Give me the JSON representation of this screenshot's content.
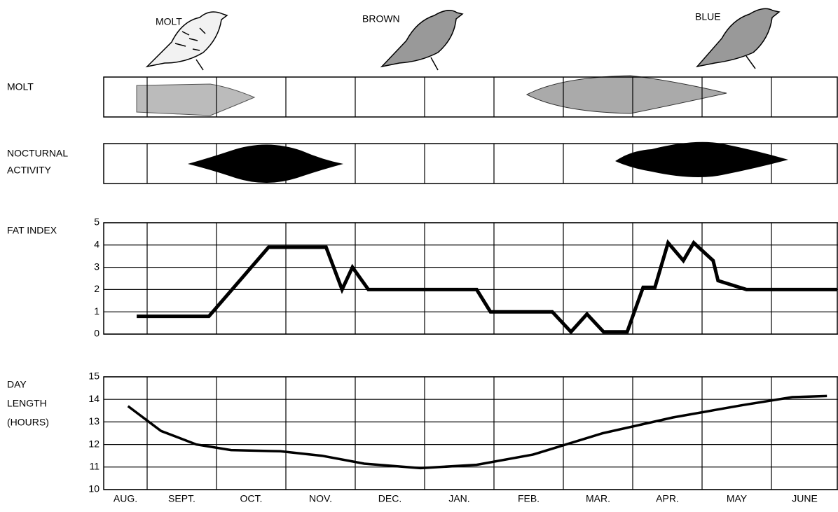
{
  "header": {
    "birds": [
      "MOLT",
      "BROWN",
      "BLUE"
    ]
  },
  "bands": [
    {
      "label_lines": [
        "MOLT"
      ]
    },
    {
      "label_lines": [
        "NOCTURNAL",
        "ACTIVITY"
      ]
    }
  ],
  "months": [
    "AUG.",
    "SEPT.",
    "OCT.",
    "NOV.",
    "DEC.",
    "JAN.",
    "FEB.",
    "MAR.",
    "APR.",
    "MAY",
    "JUNE"
  ],
  "chart_data": [
    {
      "type": "line",
      "ylabel_lines": [
        "FAT INDEX"
      ],
      "color": "#000000",
      "line_width": 5,
      "x": [
        0.76,
        1.89,
        2.75,
        3.58,
        3.81,
        3.96,
        4.19,
        5.75,
        5.95,
        6.84,
        7.11,
        7.34,
        7.58,
        7.92,
        8.15,
        8.32,
        8.51,
        8.73,
        8.88,
        9.16,
        9.23,
        9.64,
        10.95
      ],
      "series": [
        {
          "values": [
            0.8,
            0.8,
            3.9,
            3.9,
            2.0,
            3.0,
            2.0,
            2.0,
            1.0,
            1.0,
            0.1,
            0.9,
            0.1,
            0.1,
            2.1,
            2.1,
            4.1,
            3.3,
            4.1,
            3.3,
            2.4,
            2.0,
            2.0
          ]
        }
      ],
      "xlim": [
        0,
        10.95
      ],
      "ylim": [
        0,
        5
      ],
      "yticks": [
        0,
        1,
        2,
        3,
        4,
        5
      ],
      "grid": true
    },
    {
      "type": "line",
      "ylabel_lines": [
        "DAY",
        "LENGTH",
        "(HOURS)"
      ],
      "color": "#000000",
      "line_width": 3.5,
      "x": [
        0.56,
        1.2,
        1.71,
        2.21,
        2.92,
        3.52,
        4.13,
        4.94,
        5.75,
        6.56,
        7.57,
        8.58,
        9.59,
        10.3,
        10.8
      ],
      "series": [
        {
          "values": [
            13.7,
            12.6,
            12.0,
            11.75,
            11.7,
            11.5,
            11.15,
            10.95,
            11.1,
            11.55,
            12.5,
            13.2,
            13.75,
            14.1,
            14.15
          ]
        }
      ],
      "xlim": [
        0,
        10.95
      ],
      "ylim": [
        10,
        15
      ],
      "yticks": [
        10,
        11,
        12,
        13,
        14,
        15
      ],
      "grid": true
    }
  ]
}
